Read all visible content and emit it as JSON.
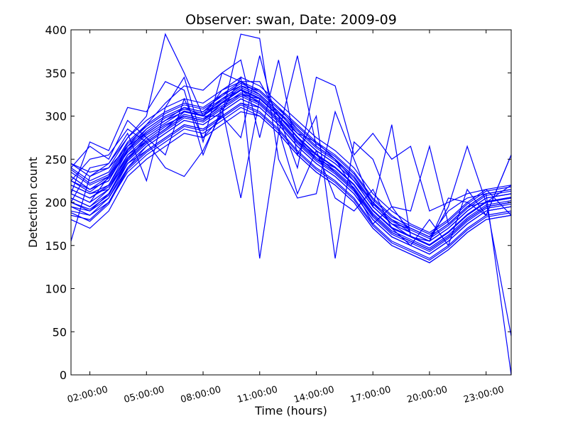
{
  "chart_data": {
    "type": "line",
    "title": "Observer: swan, Date: 2009-09",
    "xlabel": "Time (hours)",
    "ylabel": "Detection count",
    "xlim": [
      1.0,
      24.33
    ],
    "ylim": [
      0,
      400
    ],
    "x_ticks": [
      2,
      5,
      8,
      11,
      14,
      17,
      20,
      23
    ],
    "x_tick_labels": [
      "02:00:00",
      "05:00:00",
      "08:00:00",
      "11:00:00",
      "14:00:00",
      "17:00:00",
      "20:00:00",
      "23:00:00"
    ],
    "y_ticks": [
      0,
      50,
      100,
      150,
      200,
      250,
      300,
      350,
      400
    ],
    "y_tick_labels": [
      "0",
      "50",
      "100",
      "150",
      "200",
      "250",
      "300",
      "350",
      "400"
    ],
    "series_color": "#0000ff",
    "x": [
      1,
      2,
      3,
      4,
      5,
      6,
      7,
      8,
      9,
      10,
      11,
      12,
      13,
      14,
      15,
      16,
      17,
      18,
      19,
      20,
      21,
      22,
      23,
      24.33
    ],
    "series": [
      {
        "values": [
          210,
          200,
          230,
          260,
          285,
          300,
          310,
          300,
          320,
          330,
          320,
          300,
          280,
          260,
          245,
          225,
          195,
          175,
          160,
          150,
          165,
          185,
          200,
          205
        ]
      },
      {
        "values": [
          220,
          210,
          215,
          250,
          275,
          290,
          300,
          295,
          315,
          325,
          315,
          295,
          270,
          255,
          235,
          215,
          185,
          165,
          155,
          145,
          160,
          180,
          195,
          200
        ]
      },
      {
        "values": [
          195,
          185,
          205,
          240,
          265,
          280,
          295,
          290,
          305,
          320,
          310,
          290,
          265,
          245,
          230,
          210,
          180,
          160,
          150,
          140,
          155,
          175,
          190,
          195
        ]
      },
      {
        "values": [
          230,
          215,
          225,
          265,
          280,
          295,
          305,
          300,
          330,
          340,
          325,
          305,
          285,
          265,
          250,
          230,
          200,
          180,
          165,
          155,
          170,
          190,
          205,
          210
        ]
      },
      {
        "values": [
          205,
          195,
          210,
          245,
          260,
          275,
          290,
          285,
          300,
          315,
          305,
          285,
          260,
          240,
          225,
          205,
          175,
          155,
          145,
          135,
          150,
          170,
          185,
          190
        ]
      },
      {
        "values": [
          240,
          225,
          235,
          270,
          290,
          305,
          315,
          310,
          325,
          335,
          330,
          310,
          290,
          270,
          255,
          235,
          205,
          185,
          170,
          160,
          175,
          195,
          210,
          215
        ]
      },
      {
        "values": [
          185,
          180,
          200,
          235,
          255,
          270,
          285,
          280,
          295,
          310,
          300,
          280,
          255,
          235,
          220,
          200,
          170,
          150,
          140,
          130,
          145,
          165,
          180,
          185
        ]
      },
      {
        "values": [
          215,
          205,
          220,
          255,
          270,
          285,
          300,
          295,
          310,
          325,
          320,
          300,
          275,
          250,
          240,
          220,
          190,
          170,
          160,
          150,
          165,
          185,
          200,
          205
        ]
      },
      {
        "values": [
          200,
          190,
          210,
          250,
          270,
          285,
          305,
          300,
          315,
          330,
          315,
          295,
          270,
          250,
          235,
          215,
          185,
          165,
          155,
          145,
          160,
          180,
          195,
          200
        ]
      },
      {
        "values": [
          225,
          215,
          230,
          260,
          280,
          295,
          310,
          305,
          320,
          335,
          325,
          305,
          280,
          260,
          245,
          225,
          195,
          175,
          165,
          155,
          170,
          190,
          205,
          210
        ]
      },
      {
        "values": [
          190,
          185,
          200,
          240,
          260,
          275,
          290,
          285,
          300,
          315,
          310,
          290,
          265,
          245,
          230,
          210,
          180,
          160,
          150,
          140,
          155,
          175,
          190,
          195
        ]
      },
      {
        "values": [
          235,
          220,
          230,
          265,
          285,
          300,
          310,
          305,
          325,
          340,
          330,
          310,
          285,
          265,
          250,
          230,
          200,
          180,
          170,
          160,
          175,
          195,
          210,
          215
        ]
      },
      {
        "values": [
          210,
          200,
          215,
          250,
          270,
          285,
          300,
          295,
          310,
          325,
          315,
          295,
          270,
          250,
          235,
          215,
          185,
          165,
          155,
          145,
          160,
          180,
          195,
          200
        ]
      },
      {
        "values": [
          180,
          170,
          190,
          230,
          250,
          265,
          280,
          275,
          290,
          305,
          300,
          280,
          255,
          235,
          220,
          200,
          170,
          150,
          140,
          130,
          145,
          165,
          180,
          185
        ]
      },
      {
        "values": [
          245,
          230,
          240,
          275,
          295,
          310,
          320,
          315,
          330,
          345,
          335,
          315,
          295,
          275,
          260,
          240,
          210,
          190,
          175,
          165,
          180,
          200,
          215,
          220
        ]
      },
      {
        "values": [
          205,
          195,
          215,
          255,
          275,
          290,
          300,
          295,
          315,
          330,
          320,
          300,
          275,
          255,
          240,
          220,
          190,
          170,
          160,
          150,
          165,
          185,
          200,
          205
        ]
      },
      {
        "values": [
          220,
          210,
          220,
          260,
          280,
          295,
          305,
          300,
          320,
          335,
          325,
          305,
          280,
          260,
          245,
          225,
          195,
          175,
          165,
          155,
          170,
          190,
          205,
          210
        ]
      },
      {
        "values": [
          195,
          190,
          205,
          245,
          265,
          280,
          295,
          290,
          305,
          320,
          310,
          290,
          265,
          245,
          230,
          210,
          180,
          160,
          150,
          140,
          155,
          175,
          190,
          195
        ]
      },
      {
        "values": [
          230,
          215,
          225,
          262,
          282,
          298,
          308,
          303,
          318,
          333,
          323,
          303,
          283,
          263,
          248,
          228,
          198,
          178,
          168,
          158,
          173,
          193,
          208,
          213
        ]
      },
      {
        "values": [
          200,
          192,
          208,
          248,
          268,
          283,
          298,
          293,
          308,
          323,
          313,
          293,
          268,
          248,
          233,
          213,
          183,
          163,
          153,
          143,
          158,
          178,
          193,
          198
        ]
      },
      {
        "values": [
          215,
          205,
          218,
          252,
          272,
          288,
          302,
          297,
          312,
          327,
          317,
          297,
          272,
          252,
          237,
          217,
          187,
          167,
          157,
          147,
          162,
          182,
          197,
          202
        ]
      },
      {
        "values": [
          225,
          212,
          228,
          258,
          278,
          292,
          306,
          301,
          316,
          331,
          321,
          301,
          276,
          256,
          241,
          221,
          191,
          171,
          161,
          151,
          166,
          186,
          201,
          206
        ]
      },
      {
        "values": [
          188,
          178,
          198,
          238,
          258,
          273,
          288,
          283,
          298,
          313,
          303,
          283,
          258,
          238,
          223,
          203,
          173,
          153,
          143,
          133,
          148,
          168,
          183,
          188
        ]
      },
      {
        "values": [
          238,
          222,
          232,
          268,
          288,
          303,
          313,
          308,
          323,
          338,
          328,
          308,
          288,
          268,
          253,
          233,
          203,
          183,
          173,
          163,
          178,
          198,
          213,
          218
        ]
      },
      {
        "values": [
          155,
          230,
          245,
          275,
          300,
          395,
          350,
          300,
          300,
          395,
          390,
          250,
          205,
          210,
          305,
          250,
          195,
          290,
          160,
          155,
          195,
          265,
          200,
          45
        ]
      },
      {
        "values": [
          200,
          240,
          245,
          280,
          225,
          310,
          345,
          270,
          350,
          365,
          275,
          365,
          255,
          300,
          135,
          270,
          250,
          195,
          190,
          265,
          175,
          195,
          200,
          220
        ]
      },
      {
        "values": [
          210,
          270,
          260,
          310,
          305,
          340,
          330,
          255,
          310,
          205,
          320,
          300,
          240,
          345,
          335,
          255,
          280,
          250,
          265,
          190,
          200,
          210,
          215,
          185
        ]
      },
      {
        "values": [
          225,
          250,
          255,
          285,
          270,
          240,
          230,
          260,
          305,
          345,
          135,
          280,
          370,
          265,
          250,
          215,
          175,
          195,
          165,
          155,
          205,
          200,
          185,
          255
        ]
      },
      {
        "values": [
          240,
          265,
          250,
          295,
          275,
          255,
          320,
          275,
          300,
          275,
          370,
          285,
          210,
          260,
          205,
          190,
          215,
          170,
          150,
          180,
          150,
          215,
          185,
          255
        ]
      },
      {
        "values": [
          245,
          235,
          240,
          265,
          290,
          315,
          335,
          330,
          350,
          340,
          340,
          300,
          280,
          270,
          250,
          225,
          200,
          175,
          170,
          160,
          190,
          205,
          210,
          0
        ]
      }
    ]
  }
}
